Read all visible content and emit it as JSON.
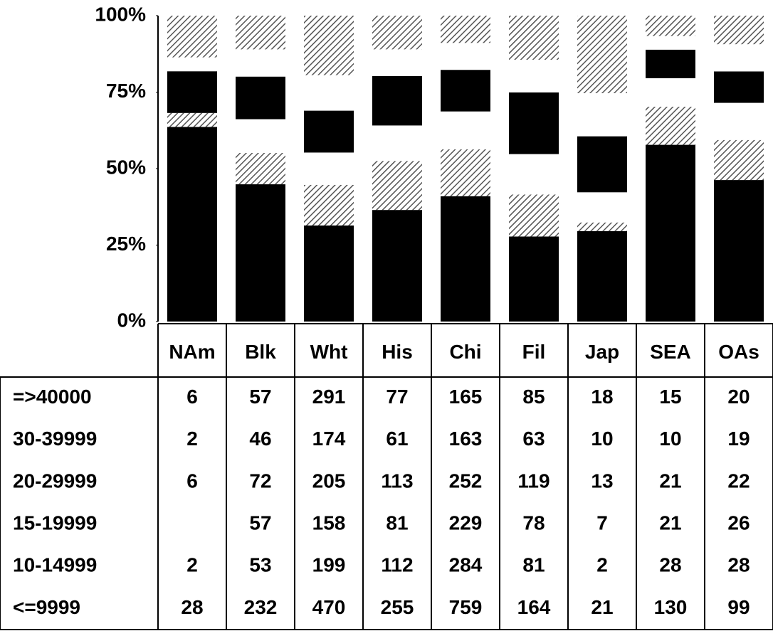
{
  "chart_data": {
    "type": "stacked_percent_bar",
    "categories": [
      "NAm",
      "Blk",
      "Wht",
      "His",
      "Chi",
      "Fil",
      "Jap",
      "SEA",
      "OAs"
    ],
    "series": [
      {
        "name": "=>40000",
        "color": "#555555",
        "pattern": "hatch",
        "values": [
          6,
          57,
          291,
          77,
          165,
          85,
          18,
          15,
          20
        ]
      },
      {
        "name": "30-39999",
        "color": "#ffffff",
        "pattern": "solid",
        "values": [
          2,
          46,
          174,
          61,
          163,
          63,
          10,
          10,
          19
        ]
      },
      {
        "name": "20-29999",
        "color": "#000000",
        "pattern": "solid",
        "values": [
          6,
          72,
          205,
          113,
          252,
          119,
          13,
          21,
          22
        ]
      },
      {
        "name": "15-19999",
        "color": "#ffffff",
        "pattern": "solid",
        "values": [
          null,
          57,
          158,
          81,
          229,
          78,
          7,
          21,
          26
        ]
      },
      {
        "name": "10-14999",
        "color": "#555555",
        "pattern": "hatch",
        "values": [
          2,
          53,
          199,
          112,
          284,
          81,
          2,
          28,
          28
        ]
      },
      {
        "name": "<=9999",
        "color": "#000000",
        "pattern": "solid",
        "values": [
          28,
          232,
          470,
          255,
          759,
          164,
          21,
          130,
          99
        ]
      }
    ],
    "ylim": [
      0,
      100
    ],
    "yticks": [
      {
        "value": 0,
        "label": "0%"
      },
      {
        "value": 25,
        "label": "25%"
      },
      {
        "value": 50,
        "label": "50%"
      },
      {
        "value": 75,
        "label": "75%"
      },
      {
        "value": 100,
        "label": "100%"
      }
    ]
  }
}
